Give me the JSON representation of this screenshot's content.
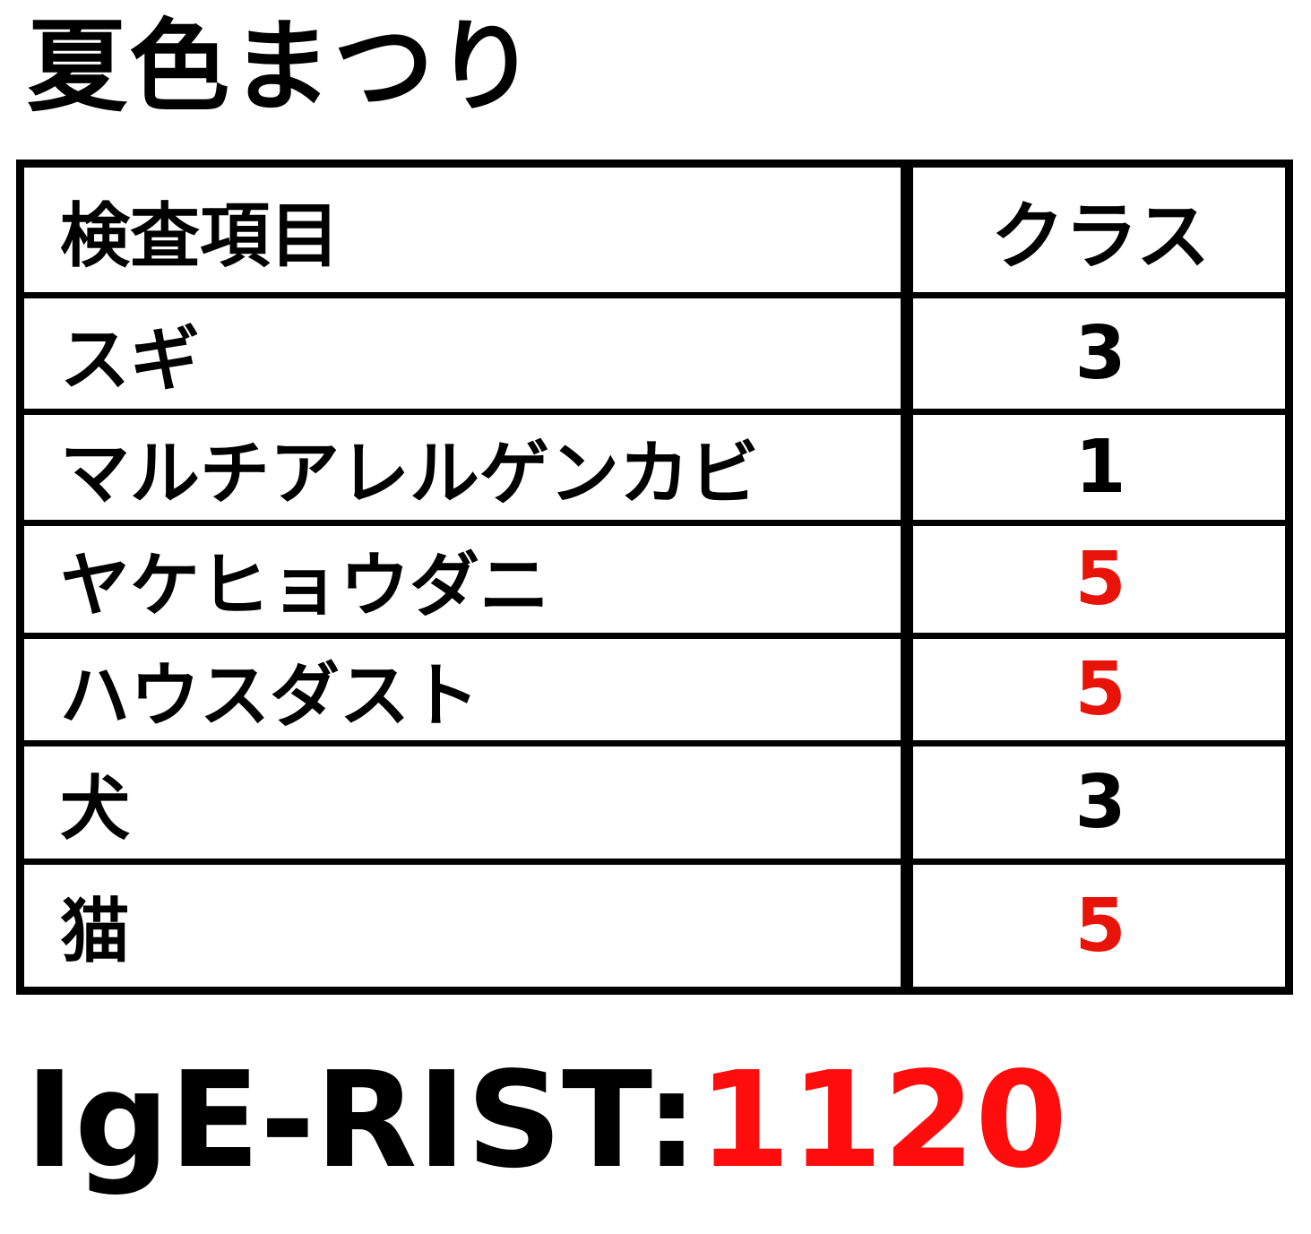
{
  "title": "夏色まつり",
  "table": {
    "headers": {
      "item": "検査項目",
      "class": "クラス"
    },
    "rows": [
      {
        "item": "スギ",
        "class": "3",
        "highlight": false
      },
      {
        "item": "マルチアレルゲンカビ",
        "class": "1",
        "highlight": false
      },
      {
        "item": "ヤケヒョウダニ",
        "class": "5",
        "highlight": true
      },
      {
        "item": "ハウスダスト",
        "class": "5",
        "highlight": true
      },
      {
        "item": "犬",
        "class": "3",
        "highlight": false
      },
      {
        "item": "猫",
        "class": "5",
        "highlight": true
      }
    ]
  },
  "footer": {
    "label": "IgE-RIST:",
    "value": "1120"
  },
  "colors": {
    "highlight": "#e8140a",
    "text": "#000000"
  }
}
